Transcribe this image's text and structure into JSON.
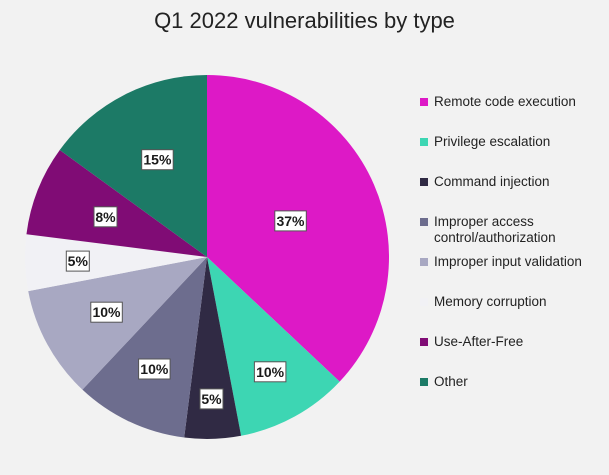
{
  "chart_data": {
    "type": "pie",
    "title": "Q1 2022 vulnerabilities by type",
    "categories": [
      "Remote code execution",
      "Privilege escalation",
      "Command injection",
      "Improper access control/authorization",
      "Improper input validation",
      "Memory corruption",
      "Use-After-Free",
      "Other"
    ],
    "legend_lines": [
      [
        "Remote code execution"
      ],
      [
        "Privilege escalation"
      ],
      [
        "Command injection"
      ],
      [
        "Improper access",
        "control/authorization"
      ],
      [
        "Improper input validation"
      ],
      [
        "Memory corruption"
      ],
      [
        "Use-After-Free"
      ],
      [
        "Other"
      ]
    ],
    "values": [
      37,
      10,
      5,
      10,
      10,
      5,
      8,
      15
    ],
    "value_labels": [
      "37%",
      "10%",
      "5%",
      "10%",
      "10%",
      "5%",
      "8%",
      "15%"
    ],
    "colors": [
      "#dd19c6",
      "#3dd6b3",
      "#302a44",
      "#6d6d8e",
      "#a8a8c2",
      "#f1f1f5",
      "#800c75",
      "#1c7a66"
    ],
    "legend_position": "right",
    "start_angle": "12 o'clock",
    "direction": "clockwise"
  }
}
